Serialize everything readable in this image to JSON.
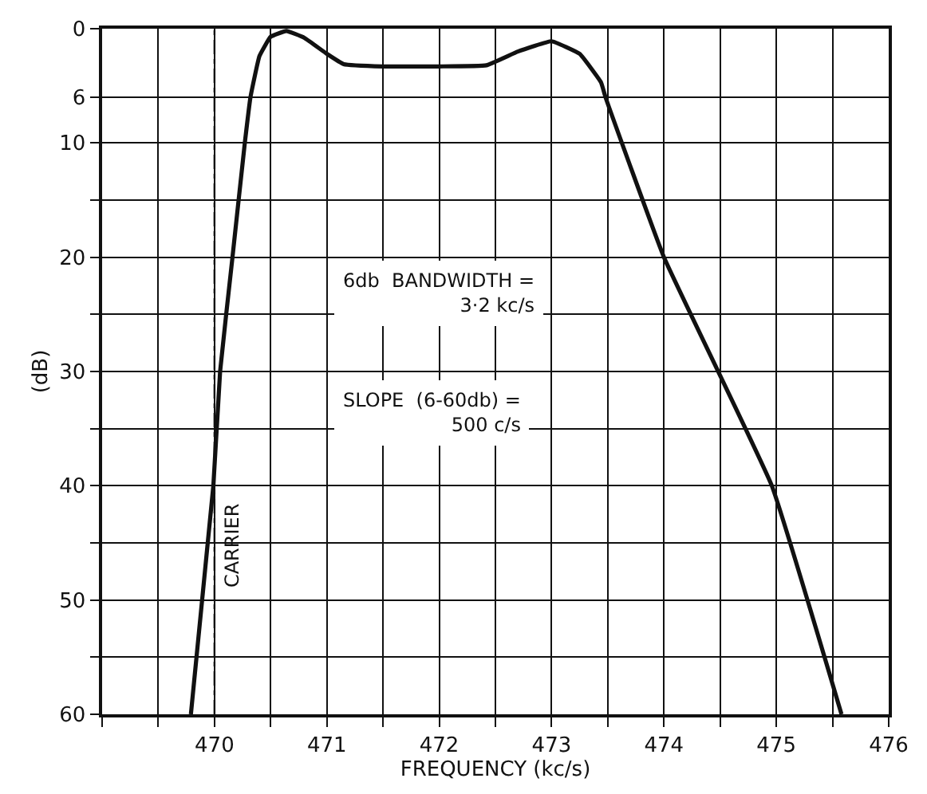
{
  "chart_data": {
    "type": "line",
    "xlabel": "FREQUENCY (kc/s)",
    "ylabel": "(dB)",
    "xlim": [
      469,
      476
    ],
    "ylim": [
      60,
      0
    ],
    "xticks": [
      {
        "value": 469,
        "label": null
      },
      {
        "value": 469.5,
        "label": null
      },
      470,
      {
        "value": 470.5,
        "label": null
      },
      471,
      {
        "value": 471.5,
        "label": null
      },
      472,
      {
        "value": 472.5,
        "label": null
      },
      473,
      {
        "value": 473.5,
        "label": null
      },
      474,
      {
        "value": 474.5,
        "label": null
      },
      475,
      {
        "value": 475.5,
        "label": null
      },
      476
    ],
    "yticks": [
      0,
      6,
      10,
      {
        "value": 15,
        "label": null
      },
      20,
      {
        "value": 25,
        "label": null
      },
      30,
      {
        "value": 35,
        "label": null
      },
      40,
      {
        "value": 45,
        "label": null
      },
      50,
      {
        "value": 55,
        "label": null
      },
      60
    ],
    "grid": true,
    "marker": "none",
    "line_style": "solid",
    "x": [
      469.79,
      469.99,
      470.05,
      470.16,
      470.27,
      470.32,
      470.4,
      470.5,
      470.64,
      470.8,
      471.0,
      471.15,
      471.5,
      472.0,
      472.42,
      472.7,
      473.0,
      473.25,
      473.44,
      473.48,
      474.0,
      474.96,
      475.58
    ],
    "series": [
      {
        "color": "#111111",
        "values": [
          60,
          40,
          30,
          20,
          10,
          6,
          2.4,
          0.7,
          0.2,
          0.8,
          2.2,
          3.1,
          3.3,
          3.3,
          3.2,
          2.0,
          1.1,
          2.2,
          4.7,
          6,
          20,
          40,
          60
        ]
      }
    ],
    "ref_lines": [
      {
        "axis": "x",
        "value": 470,
        "label": "CARRIER",
        "line_style": "dashed",
        "color": "#111111"
      }
    ],
    "annotations": [
      "6db  BANDWIDTH =\n3·2 kc/s",
      "SLOPE  (6-60db) =\n500 c/s"
    ]
  }
}
